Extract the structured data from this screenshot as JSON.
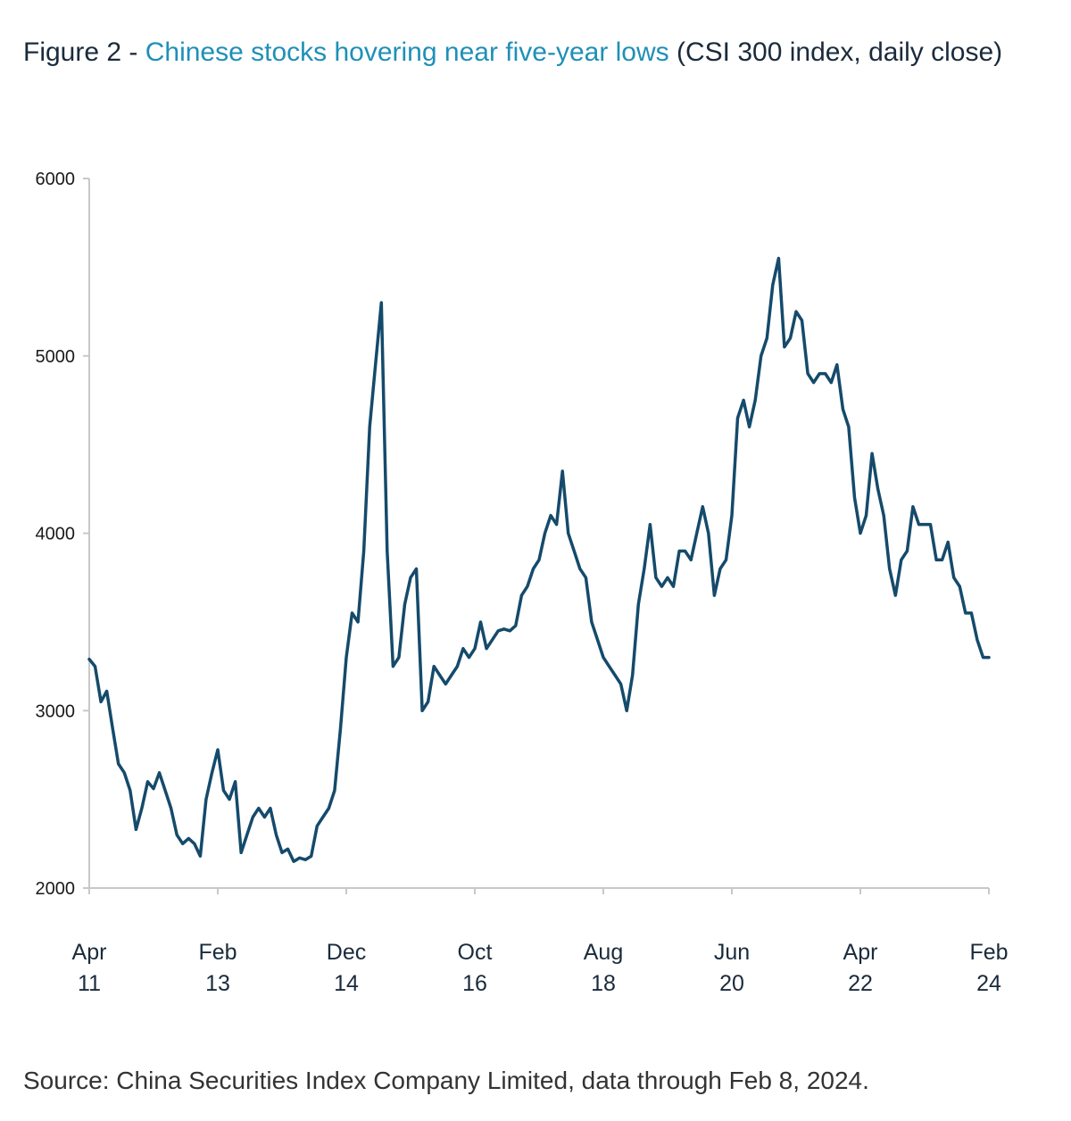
{
  "header": {
    "prefix": "Figure 2 - ",
    "highlight": "Chinese stocks hovering near five-year lows",
    "suffix": " (CSI 300 index, daily close)"
  },
  "footer": {
    "source": "Source: China Securities Index Company Limited, data through Feb 8, 2024."
  },
  "colors": {
    "line": "#154a6b",
    "axis": "#c8c8c8",
    "accent": "#1f8fb8"
  },
  "chart_data": {
    "type": "line",
    "title": "",
    "xlabel": "",
    "ylabel": "",
    "ylim": [
      2000,
      6000
    ],
    "xlim": [
      "2011-04",
      "2024-02"
    ],
    "yticks": [
      "2000",
      "3000",
      "4000",
      "5000",
      "6000"
    ],
    "xticks": [
      {
        "month": "Apr",
        "year": "11",
        "x": "2011-04"
      },
      {
        "month": "Feb",
        "year": "13",
        "x": "2013-02"
      },
      {
        "month": "Dec",
        "year": "14",
        "x": "2014-12"
      },
      {
        "month": "Oct",
        "year": "16",
        "x": "2016-10"
      },
      {
        "month": "Aug",
        "year": "18",
        "x": "2018-08"
      },
      {
        "month": "Jun",
        "year": "20",
        "x": "2020-06"
      },
      {
        "month": "Apr",
        "year": "22",
        "x": "2022-04"
      },
      {
        "month": "Feb",
        "year": "24",
        "x": "2024-02"
      }
    ],
    "grid": false,
    "legend": "none",
    "series": [
      {
        "points": [
          [
            "2011-04",
            3290
          ],
          [
            "2011-05",
            3250
          ],
          [
            "2011-06",
            3050
          ],
          [
            "2011-07",
            3110
          ],
          [
            "2011-08",
            2900
          ],
          [
            "2011-09",
            2700
          ],
          [
            "2011-10",
            2650
          ],
          [
            "2011-11",
            2550
          ],
          [
            "2011-12",
            2330
          ],
          [
            "2012-01",
            2450
          ],
          [
            "2012-02",
            2600
          ],
          [
            "2012-03",
            2560
          ],
          [
            "2012-04",
            2650
          ],
          [
            "2012-05",
            2550
          ],
          [
            "2012-06",
            2450
          ],
          [
            "2012-07",
            2300
          ],
          [
            "2012-08",
            2250
          ],
          [
            "2012-09",
            2280
          ],
          [
            "2012-10",
            2250
          ],
          [
            "2012-11",
            2180
          ],
          [
            "2012-12",
            2500
          ],
          [
            "2013-01",
            2650
          ],
          [
            "2013-02",
            2780
          ],
          [
            "2013-03",
            2550
          ],
          [
            "2013-04",
            2500
          ],
          [
            "2013-05",
            2600
          ],
          [
            "2013-06",
            2200
          ],
          [
            "2013-07",
            2300
          ],
          [
            "2013-08",
            2400
          ],
          [
            "2013-09",
            2450
          ],
          [
            "2013-10",
            2400
          ],
          [
            "2013-11",
            2450
          ],
          [
            "2013-12",
            2300
          ],
          [
            "2014-01",
            2200
          ],
          [
            "2014-02",
            2220
          ],
          [
            "2014-03",
            2150
          ],
          [
            "2014-04",
            2170
          ],
          [
            "2014-05",
            2160
          ],
          [
            "2014-06",
            2180
          ],
          [
            "2014-07",
            2350
          ],
          [
            "2014-08",
            2400
          ],
          [
            "2014-09",
            2450
          ],
          [
            "2014-10",
            2550
          ],
          [
            "2014-11",
            2900
          ],
          [
            "2014-12",
            3300
          ],
          [
            "2015-01",
            3550
          ],
          [
            "2015-02",
            3500
          ],
          [
            "2015-03",
            3900
          ],
          [
            "2015-04",
            4600
          ],
          [
            "2015-05",
            4950
          ],
          [
            "2015-06",
            5300
          ],
          [
            "2015-07",
            3900
          ],
          [
            "2015-08",
            3250
          ],
          [
            "2015-09",
            3300
          ],
          [
            "2015-10",
            3600
          ],
          [
            "2015-11",
            3750
          ],
          [
            "2015-12",
            3800
          ],
          [
            "2016-01",
            3000
          ],
          [
            "2016-02",
            3050
          ],
          [
            "2016-03",
            3250
          ],
          [
            "2016-04",
            3200
          ],
          [
            "2016-05",
            3150
          ],
          [
            "2016-06",
            3200
          ],
          [
            "2016-07",
            3250
          ],
          [
            "2016-08",
            3350
          ],
          [
            "2016-09",
            3300
          ],
          [
            "2016-10",
            3350
          ],
          [
            "2016-11",
            3500
          ],
          [
            "2016-12",
            3350
          ],
          [
            "2017-01",
            3400
          ],
          [
            "2017-02",
            3450
          ],
          [
            "2017-03",
            3460
          ],
          [
            "2017-04",
            3450
          ],
          [
            "2017-05",
            3480
          ],
          [
            "2017-06",
            3650
          ],
          [
            "2017-07",
            3700
          ],
          [
            "2017-08",
            3800
          ],
          [
            "2017-09",
            3850
          ],
          [
            "2017-10",
            4000
          ],
          [
            "2017-11",
            4100
          ],
          [
            "2017-12",
            4050
          ],
          [
            "2018-01",
            4350
          ],
          [
            "2018-02",
            4000
          ],
          [
            "2018-03",
            3900
          ],
          [
            "2018-04",
            3800
          ],
          [
            "2018-05",
            3750
          ],
          [
            "2018-06",
            3500
          ],
          [
            "2018-07",
            3400
          ],
          [
            "2018-08",
            3300
          ],
          [
            "2018-09",
            3250
          ],
          [
            "2018-10",
            3200
          ],
          [
            "2018-11",
            3150
          ],
          [
            "2018-12",
            3000
          ],
          [
            "2019-01",
            3200
          ],
          [
            "2019-02",
            3600
          ],
          [
            "2019-03",
            3800
          ],
          [
            "2019-04",
            4050
          ],
          [
            "2019-05",
            3750
          ],
          [
            "2019-06",
            3700
          ],
          [
            "2019-07",
            3750
          ],
          [
            "2019-08",
            3700
          ],
          [
            "2019-09",
            3900
          ],
          [
            "2019-10",
            3900
          ],
          [
            "2019-11",
            3850
          ],
          [
            "2019-12",
            4000
          ],
          [
            "2020-01",
            4150
          ],
          [
            "2020-02",
            4000
          ],
          [
            "2020-03",
            3650
          ],
          [
            "2020-04",
            3800
          ],
          [
            "2020-05",
            3850
          ],
          [
            "2020-06",
            4100
          ],
          [
            "2020-07",
            4650
          ],
          [
            "2020-08",
            4750
          ],
          [
            "2020-09",
            4600
          ],
          [
            "2020-10",
            4750
          ],
          [
            "2020-11",
            5000
          ],
          [
            "2020-12",
            5100
          ],
          [
            "2021-01",
            5400
          ],
          [
            "2021-02",
            5550
          ],
          [
            "2021-03",
            5050
          ],
          [
            "2021-04",
            5100
          ],
          [
            "2021-05",
            5250
          ],
          [
            "2021-06",
            5200
          ],
          [
            "2021-07",
            4900
          ],
          [
            "2021-08",
            4850
          ],
          [
            "2021-09",
            4900
          ],
          [
            "2021-10",
            4900
          ],
          [
            "2021-11",
            4850
          ],
          [
            "2021-12",
            4950
          ],
          [
            "2022-01",
            4700
          ],
          [
            "2022-02",
            4600
          ],
          [
            "2022-03",
            4200
          ],
          [
            "2022-04",
            4000
          ],
          [
            "2022-05",
            4100
          ],
          [
            "2022-06",
            4450
          ],
          [
            "2022-07",
            4250
          ],
          [
            "2022-08",
            4100
          ],
          [
            "2022-09",
            3800
          ],
          [
            "2022-10",
            3650
          ],
          [
            "2022-11",
            3850
          ],
          [
            "2022-12",
            3900
          ],
          [
            "2023-01",
            4150
          ],
          [
            "2023-02",
            4050
          ],
          [
            "2023-03",
            4050
          ],
          [
            "2023-04",
            4050
          ],
          [
            "2023-05",
            3850
          ],
          [
            "2023-06",
            3850
          ],
          [
            "2023-07",
            3950
          ],
          [
            "2023-08",
            3750
          ],
          [
            "2023-09",
            3700
          ],
          [
            "2023-10",
            3550
          ],
          [
            "2023-11",
            3550
          ],
          [
            "2023-12",
            3400
          ],
          [
            "2024-01",
            3300
          ],
          [
            "2024-02",
            3300
          ]
        ]
      }
    ]
  }
}
